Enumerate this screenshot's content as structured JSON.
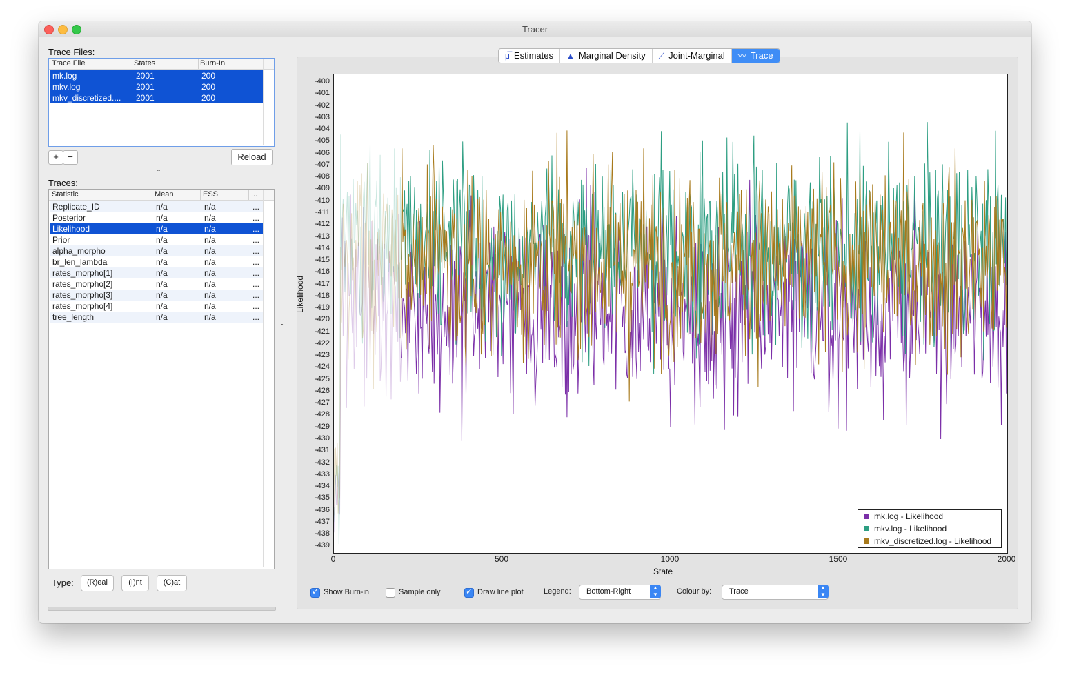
{
  "window": {
    "title": "Tracer"
  },
  "trace_files": {
    "label": "Trace Files:",
    "headers": [
      "Trace File",
      "States",
      "Burn-In"
    ],
    "rows": [
      {
        "file": "mk.log",
        "states": "2001",
        "burnin": "200"
      },
      {
        "file": "mkv.log",
        "states": "2001",
        "burnin": "200"
      },
      {
        "file": "mkv_discretized....",
        "states": "2001",
        "burnin": "200"
      }
    ],
    "add_label": "+",
    "remove_label": "−",
    "reload_label": "Reload",
    "collapse_glyph": "ˆ"
  },
  "traces": {
    "label": "Traces:",
    "headers": [
      "Statistic",
      "Mean",
      "ESS",
      "..."
    ],
    "rows": [
      {
        "stat": "Replicate_ID",
        "mean": "n/a",
        "ess": "n/a",
        "more": "..."
      },
      {
        "stat": "Posterior",
        "mean": "n/a",
        "ess": "n/a",
        "more": "..."
      },
      {
        "stat": "Likelihood",
        "mean": "n/a",
        "ess": "n/a",
        "more": "..."
      },
      {
        "stat": "Prior",
        "mean": "n/a",
        "ess": "n/a",
        "more": "..."
      },
      {
        "stat": "alpha_morpho",
        "mean": "n/a",
        "ess": "n/a",
        "more": "..."
      },
      {
        "stat": "br_len_lambda",
        "mean": "n/a",
        "ess": "n/a",
        "more": "..."
      },
      {
        "stat": "rates_morpho[1]",
        "mean": "n/a",
        "ess": "n/a",
        "more": "..."
      },
      {
        "stat": "rates_morpho[2]",
        "mean": "n/a",
        "ess": "n/a",
        "more": "..."
      },
      {
        "stat": "rates_morpho[3]",
        "mean": "n/a",
        "ess": "n/a",
        "more": "..."
      },
      {
        "stat": "rates_morpho[4]",
        "mean": "n/a",
        "ess": "n/a",
        "more": "..."
      },
      {
        "stat": "tree_length",
        "mean": "n/a",
        "ess": "n/a",
        "more": "..."
      }
    ],
    "selected_index": 2
  },
  "type_controls": {
    "label": "Type:",
    "real": "(R)eal",
    "int": "(I)nt",
    "cat": "(C)at"
  },
  "splitter_glyph": "ˆ",
  "tabs": [
    "Estimates",
    "Marginal Density",
    "Joint-Marginal",
    "Trace"
  ],
  "active_tab": "Trace",
  "tab_icons": [
    "mu-icon",
    "density-icon",
    "joint-marginal-icon",
    "trace-icon"
  ],
  "chart_data": {
    "type": "line",
    "xlabel": "State",
    "ylabel": "Likelihood",
    "xlim": [
      0,
      2000
    ],
    "ylim": [
      -439.5,
      -399.3
    ],
    "x_ticks": [
      "0",
      "500",
      "1000",
      "1500",
      "2000"
    ],
    "y_ticks": [
      "-400",
      "-401",
      "-402",
      "-403",
      "-404",
      "-405",
      "-406",
      "-407",
      "-408",
      "-409",
      "-410",
      "-411",
      "-412",
      "-413",
      "-414",
      "-415",
      "-416",
      "-417",
      "-418",
      "-419",
      "-420",
      "-421",
      "-422",
      "-423",
      "-424",
      "-425",
      "-426",
      "-427",
      "-428",
      "-429",
      "-430",
      "-431",
      "-432",
      "-433",
      "-434",
      "-435",
      "-436",
      "-437",
      "-438",
      "-439"
    ],
    "burn_in": 200,
    "legend_position": "bottom-right",
    "series": [
      {
        "name": "mk.log - Likelihood",
        "color": "#7b2fa8",
        "mean": -419,
        "sd": 4.0
      },
      {
        "name": "mkv.log - Likelihood",
        "color": "#2d9e82",
        "mean": -414,
        "sd": 4.0
      },
      {
        "name": "mkv_discretized.log - Likelihood",
        "color": "#a87a1c",
        "mean": -415,
        "sd": 4.0
      }
    ]
  },
  "controls": {
    "show_burnin": {
      "label": "Show Burn-in",
      "checked": true
    },
    "sample_only": {
      "label": "Sample only",
      "checked": false
    },
    "draw_line_plot": {
      "label": "Draw line plot",
      "checked": true
    },
    "legend_label": "Legend:",
    "legend_value": "Bottom-Right",
    "colour_label": "Colour by:",
    "colour_value": "Trace"
  }
}
